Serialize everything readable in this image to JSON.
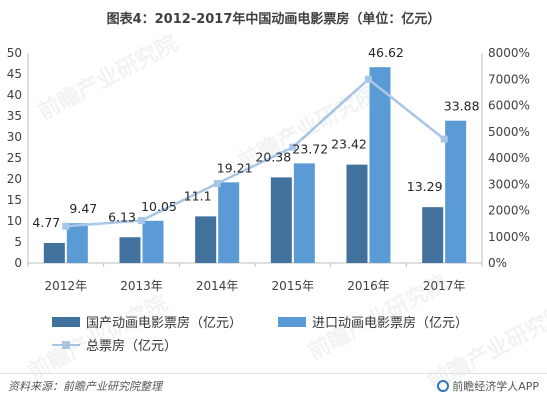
{
  "chart_data": {
    "type": "bar",
    "title": "图表4：2012-2017年中国动画电影票房（单位：亿元）",
    "categories": [
      "2012年",
      "2013年",
      "2014年",
      "2015年",
      "2016年",
      "2017年"
    ],
    "series": [
      {
        "name": "国产动画电影票房（亿元）",
        "type": "bar",
        "axis": "left",
        "color": "#41719c",
        "values": [
          4.77,
          6.13,
          11.1,
          20.38,
          23.42,
          13.29
        ],
        "labels": [
          "4.77",
          "6.13",
          "11.1",
          "20.38",
          "23.42",
          "13.29"
        ]
      },
      {
        "name": "进口动画电影票房（亿元）",
        "type": "bar",
        "axis": "left",
        "color": "#5b9bd5",
        "values": [
          9.47,
          10.05,
          19.21,
          23.72,
          46.62,
          33.88
        ],
        "labels": [
          "9.47",
          "10.05",
          "19.21",
          "23.72",
          "46.62",
          "33.88"
        ]
      },
      {
        "name": "总票房（亿元）",
        "type": "line",
        "axis": "right",
        "color": "#a9c6e8",
        "values": [
          1400,
          1620,
          3030,
          4410,
          7000,
          4720
        ]
      }
    ],
    "ylim": [
      0,
      50
    ],
    "yticks": [
      "0",
      "5",
      "10",
      "15",
      "20",
      "25",
      "30",
      "35",
      "40",
      "45",
      "50"
    ],
    "y2lim": [
      0,
      8000
    ],
    "y2ticks": [
      "0%",
      "1000%",
      "2000%",
      "3000%",
      "4000%",
      "5000%",
      "6000%",
      "7000%",
      "8000%"
    ],
    "grid": false,
    "legend_position": "bottom"
  },
  "footer": {
    "source": "资料来源：前瞻产业研究院整理",
    "brand": "前瞻经济学人APP"
  },
  "watermark_text": "前瞻产业研究院"
}
